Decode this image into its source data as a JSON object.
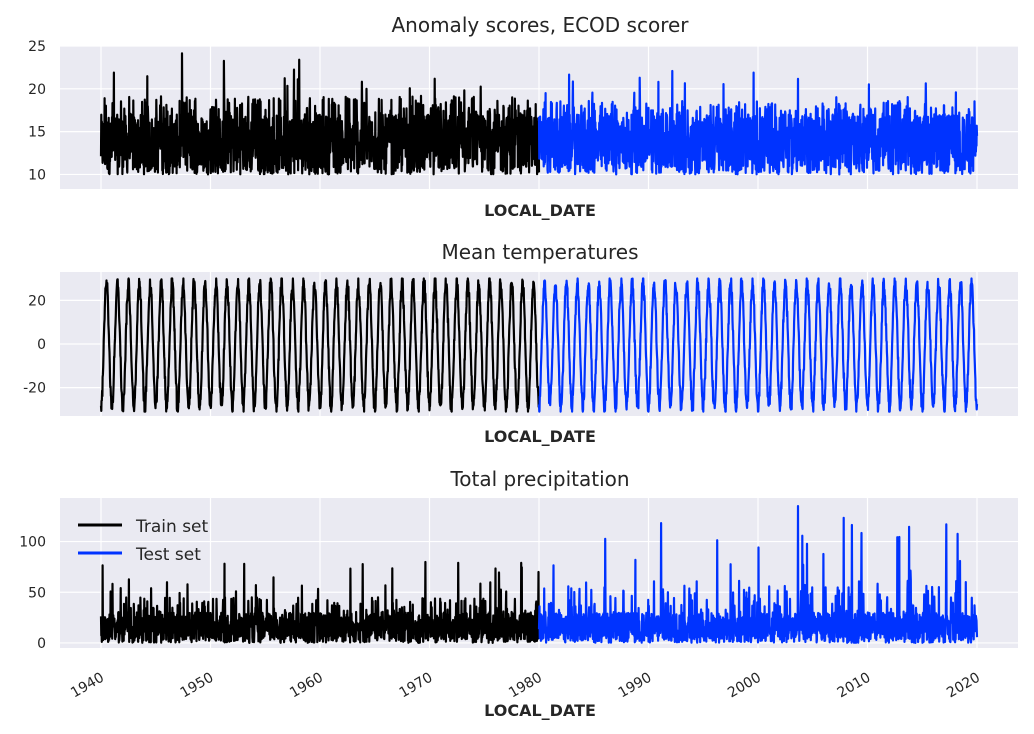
{
  "colors": {
    "train": "#000000",
    "test": "#0033ff",
    "panel_bg": "#eaeaf2",
    "grid": "#ffffff"
  },
  "legend": {
    "placement": "upper-left",
    "items": [
      "Train set",
      "Test set"
    ]
  },
  "chart_data": [
    {
      "type": "line",
      "title": "Anomaly scores, ECOD scorer",
      "xlabel": "LOCAL_DATE",
      "x_tick_labels_shown": false,
      "x_range": [
        1940,
        2020
      ],
      "split_year": 1980,
      "ylim": [
        8.3,
        25
      ],
      "yticks": [
        10,
        15,
        20,
        25
      ],
      "grid": true,
      "series": [
        {
          "name": "Train set",
          "x_range": [
            1940,
            1980
          ],
          "approx_min": 9,
          "approx_max": 24.3,
          "typical_band": [
            10,
            17
          ]
        },
        {
          "name": "Test set",
          "x_range": [
            1980,
            2020
          ],
          "approx_min": 9,
          "approx_max": 22.3,
          "typical_band": [
            10,
            17
          ]
        }
      ]
    },
    {
      "type": "line",
      "title": "Mean temperatures",
      "xlabel": "LOCAL_DATE",
      "x_tick_labels_shown": false,
      "x_range": [
        1940,
        2020
      ],
      "split_year": 1980,
      "ylim": [
        -33,
        33
      ],
      "yticks": [
        -20,
        0,
        20
      ],
      "grid": true,
      "series": [
        {
          "name": "Train set",
          "x_range": [
            1940,
            1980
          ],
          "approx_min": -31,
          "approx_max": 30,
          "seasonal_cycles_per_year": 1
        },
        {
          "name": "Test set",
          "x_range": [
            1980,
            2020
          ],
          "approx_min": -31,
          "approx_max": 30,
          "seasonal_cycles_per_year": 1
        }
      ]
    },
    {
      "type": "line",
      "title": "Total precipitation",
      "xlabel": "LOCAL_DATE",
      "x_tick_labels_shown": true,
      "x_range": [
        1940,
        2020
      ],
      "xticks": [
        1940,
        1950,
        1960,
        1970,
        1980,
        1990,
        2000,
        2010,
        2020
      ],
      "split_year": 1980,
      "ylim": [
        -5,
        143
      ],
      "yticks": [
        0,
        50,
        100
      ],
      "grid": true,
      "series": [
        {
          "name": "Train set",
          "x_range": [
            1940,
            1980
          ],
          "approx_min": 0,
          "approx_max": 80,
          "typical_band": [
            0,
            30
          ]
        },
        {
          "name": "Test set",
          "x_range": [
            1980,
            2020
          ],
          "approx_min": 0,
          "approx_max": 136,
          "typical_band": [
            0,
            30
          ]
        }
      ]
    }
  ]
}
